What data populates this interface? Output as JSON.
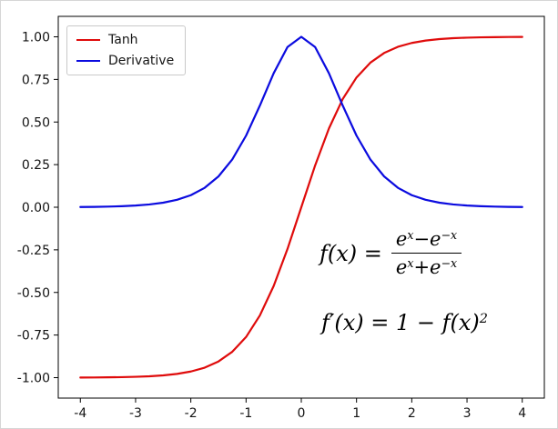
{
  "chart_data": {
    "type": "line",
    "title": "",
    "xlabel": "",
    "ylabel": "",
    "xlim": [
      -4.4,
      4.4
    ],
    "ylim": [
      -1.12,
      1.12
    ],
    "grid": false,
    "legend_position": "upper left",
    "xticks": {
      "values": [
        -4,
        -3,
        -2,
        -1,
        0,
        1,
        2,
        3,
        4
      ],
      "labels": [
        "-4",
        "-3",
        "-2",
        "-1",
        "0",
        "1",
        "2",
        "3",
        "4"
      ]
    },
    "yticks": {
      "values": [
        1.0,
        0.75,
        0.5,
        0.25,
        0.0,
        -0.25,
        -0.5,
        -0.75,
        -1.0
      ],
      "labels": [
        "1.00",
        "0.75",
        "0.50",
        "0.25",
        "0.00",
        "-0.25",
        "-0.50",
        "-0.75",
        "-1.00"
      ]
    },
    "x": [
      -4,
      -3.75,
      -3.5,
      -3.25,
      -3,
      -2.75,
      -2.5,
      -2.25,
      -2,
      -1.75,
      -1.5,
      -1.25,
      -1,
      -0.75,
      -0.5,
      -0.25,
      0,
      0.25,
      0.5,
      0.75,
      1,
      1.25,
      1.5,
      1.75,
      2,
      2.25,
      2.5,
      2.75,
      3,
      3.25,
      3.5,
      3.75,
      4
    ],
    "series": [
      {
        "name": "Tanh",
        "color": "#df0b0b",
        "values": [
          -0.9993,
          -0.9989,
          -0.9982,
          -0.997,
          -0.9951,
          -0.9919,
          -0.9866,
          -0.978,
          -0.964,
          -0.9414,
          -0.9051,
          -0.8483,
          -0.7616,
          -0.6351,
          -0.4621,
          -0.2449,
          0,
          0.2449,
          0.4621,
          0.6351,
          0.7616,
          0.8483,
          0.9051,
          0.9414,
          0.964,
          0.978,
          0.9866,
          0.9919,
          0.9951,
          0.997,
          0.9982,
          0.9989,
          0.9993
        ]
      },
      {
        "name": "Derivative",
        "color": "#0b0bdf",
        "values": [
          0.0013,
          0.0022,
          0.0037,
          0.006,
          0.0099,
          0.0162,
          0.0266,
          0.0435,
          0.0707,
          0.1138,
          0.1807,
          0.2804,
          0.42,
          0.5966,
          0.7864,
          0.94,
          1.0,
          0.94,
          0.7864,
          0.5966,
          0.42,
          0.2804,
          0.1807,
          0.1138,
          0.0707,
          0.0435,
          0.0266,
          0.0162,
          0.0099,
          0.006,
          0.0037,
          0.0022,
          0.0013
        ]
      }
    ],
    "annotations": {
      "tanh_formula": {
        "lhs": "f(x) =",
        "num": {
          "b1": "e",
          "s1": "x",
          "op": "−",
          "b2": "e",
          "s2": "−x"
        },
        "den": {
          "b1": "e",
          "s1": "x",
          "op": "+",
          "b2": "e",
          "s2": "−x"
        }
      },
      "derivative_formula": {
        "body": "f′(x) = 1 − f(x)",
        "sup": "2"
      }
    }
  }
}
